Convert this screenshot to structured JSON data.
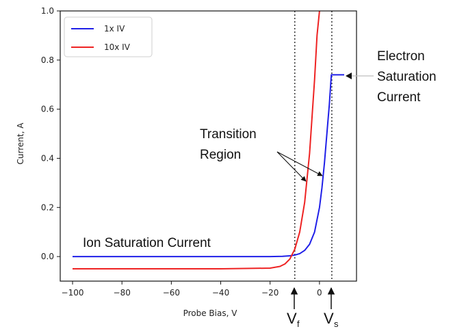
{
  "chart_data": {
    "type": "line",
    "xlabel": "Probe Bias, V",
    "ylabel": "Current, A",
    "xlim": [
      -105,
      15
    ],
    "ylim": [
      -0.1,
      1.0
    ],
    "xticks": [
      -100,
      -80,
      -60,
      -40,
      -20,
      0
    ],
    "xtick_labels": [
      "−100",
      "−80",
      "−60",
      "−40",
      "−20",
      "0"
    ],
    "yticks": [
      0.0,
      0.2,
      0.4,
      0.6,
      0.8,
      1.0
    ],
    "ytick_labels": [
      "0.0",
      "0.2",
      "0.4",
      "0.6",
      "0.8",
      "1.0"
    ],
    "legend_position": "top-left",
    "series": [
      {
        "name": "1x IV",
        "color": "#1f1fe8",
        "x": [
          -100,
          -80,
          -60,
          -40,
          -20,
          -15,
          -12,
          -10,
          -8,
          -6,
          -4,
          -2,
          0,
          1,
          2,
          3,
          4,
          4.8,
          5,
          6,
          8,
          10
        ],
        "y": [
          0.0,
          0.0,
          0.0,
          0.0,
          0.0,
          0.001,
          0.003,
          0.006,
          0.012,
          0.025,
          0.05,
          0.1,
          0.2,
          0.28,
          0.38,
          0.5,
          0.62,
          0.74,
          0.74,
          0.74,
          0.74,
          0.74
        ]
      },
      {
        "name": "10x IV",
        "color": "#ee2222",
        "x": [
          -100,
          -80,
          -60,
          -40,
          -20,
          -16,
          -14,
          -12,
          -10,
          -8,
          -6,
          -4,
          -2,
          -1,
          0
        ],
        "y": [
          -0.05,
          -0.05,
          -0.05,
          -0.05,
          -0.047,
          -0.04,
          -0.03,
          -0.01,
          0.03,
          0.1,
          0.22,
          0.42,
          0.72,
          0.9,
          1.0
        ]
      }
    ],
    "vlines": [
      {
        "x": -10,
        "label": "V",
        "sub": "f"
      },
      {
        "x": 5,
        "label": "V",
        "sub": "s"
      }
    ],
    "annotations": {
      "ion": "Ion Saturation Current",
      "transition_line1": "Transition",
      "transition_line2": "Region",
      "electron_line1": "Electron",
      "electron_line2": "Saturation",
      "electron_line3": "Current"
    }
  }
}
